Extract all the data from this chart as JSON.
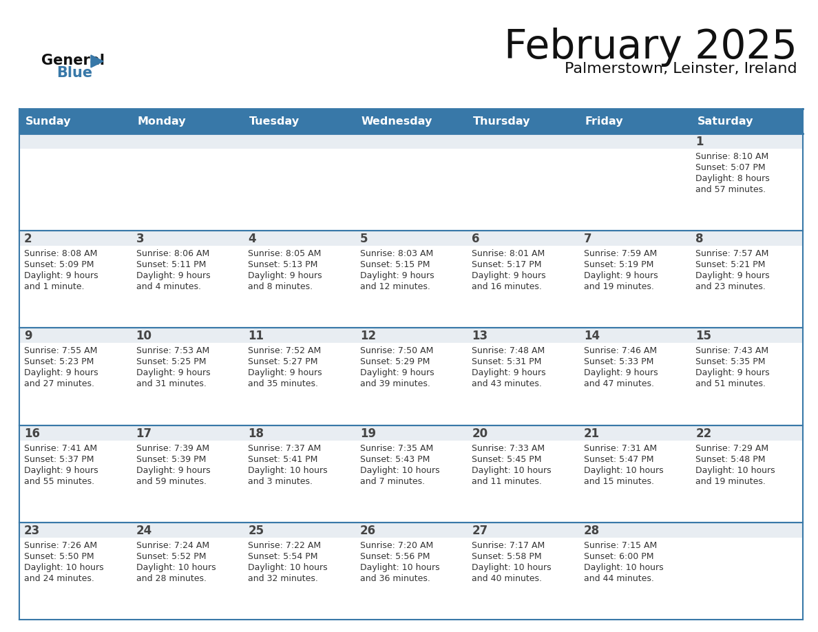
{
  "title": "February 2025",
  "subtitle": "Palmerstown, Leinster, Ireland",
  "days_of_week": [
    "Sunday",
    "Monday",
    "Tuesday",
    "Wednesday",
    "Thursday",
    "Friday",
    "Saturday"
  ],
  "header_bg": "#3878a8",
  "header_text": "#ffffff",
  "cell_bg_top": "#e8edf2",
  "cell_bg_main": "#ffffff",
  "border_color": "#3878a8",
  "day_number_color": "#444444",
  "info_text_color": "#333333",
  "calendar_data": [
    [
      null,
      null,
      null,
      null,
      null,
      null,
      {
        "day": 1,
        "sunrise": "8:10 AM",
        "sunset": "5:07 PM",
        "daylight": "8 hours and 57 minutes"
      }
    ],
    [
      {
        "day": 2,
        "sunrise": "8:08 AM",
        "sunset": "5:09 PM",
        "daylight": "9 hours and 1 minute"
      },
      {
        "day": 3,
        "sunrise": "8:06 AM",
        "sunset": "5:11 PM",
        "daylight": "9 hours and 4 minutes"
      },
      {
        "day": 4,
        "sunrise": "8:05 AM",
        "sunset": "5:13 PM",
        "daylight": "9 hours and 8 minutes"
      },
      {
        "day": 5,
        "sunrise": "8:03 AM",
        "sunset": "5:15 PM",
        "daylight": "9 hours and 12 minutes"
      },
      {
        "day": 6,
        "sunrise": "8:01 AM",
        "sunset": "5:17 PM",
        "daylight": "9 hours and 16 minutes"
      },
      {
        "day": 7,
        "sunrise": "7:59 AM",
        "sunset": "5:19 PM",
        "daylight": "9 hours and 19 minutes"
      },
      {
        "day": 8,
        "sunrise": "7:57 AM",
        "sunset": "5:21 PM",
        "daylight": "9 hours and 23 minutes"
      }
    ],
    [
      {
        "day": 9,
        "sunrise": "7:55 AM",
        "sunset": "5:23 PM",
        "daylight": "9 hours and 27 minutes"
      },
      {
        "day": 10,
        "sunrise": "7:53 AM",
        "sunset": "5:25 PM",
        "daylight": "9 hours and 31 minutes"
      },
      {
        "day": 11,
        "sunrise": "7:52 AM",
        "sunset": "5:27 PM",
        "daylight": "9 hours and 35 minutes"
      },
      {
        "day": 12,
        "sunrise": "7:50 AM",
        "sunset": "5:29 PM",
        "daylight": "9 hours and 39 minutes"
      },
      {
        "day": 13,
        "sunrise": "7:48 AM",
        "sunset": "5:31 PM",
        "daylight": "9 hours and 43 minutes"
      },
      {
        "day": 14,
        "sunrise": "7:46 AM",
        "sunset": "5:33 PM",
        "daylight": "9 hours and 47 minutes"
      },
      {
        "day": 15,
        "sunrise": "7:43 AM",
        "sunset": "5:35 PM",
        "daylight": "9 hours and 51 minutes"
      }
    ],
    [
      {
        "day": 16,
        "sunrise": "7:41 AM",
        "sunset": "5:37 PM",
        "daylight": "9 hours and 55 minutes"
      },
      {
        "day": 17,
        "sunrise": "7:39 AM",
        "sunset": "5:39 PM",
        "daylight": "9 hours and 59 minutes"
      },
      {
        "day": 18,
        "sunrise": "7:37 AM",
        "sunset": "5:41 PM",
        "daylight": "10 hours and 3 minutes"
      },
      {
        "day": 19,
        "sunrise": "7:35 AM",
        "sunset": "5:43 PM",
        "daylight": "10 hours and 7 minutes"
      },
      {
        "day": 20,
        "sunrise": "7:33 AM",
        "sunset": "5:45 PM",
        "daylight": "10 hours and 11 minutes"
      },
      {
        "day": 21,
        "sunrise": "7:31 AM",
        "sunset": "5:47 PM",
        "daylight": "10 hours and 15 minutes"
      },
      {
        "day": 22,
        "sunrise": "7:29 AM",
        "sunset": "5:48 PM",
        "daylight": "10 hours and 19 minutes"
      }
    ],
    [
      {
        "day": 23,
        "sunrise": "7:26 AM",
        "sunset": "5:50 PM",
        "daylight": "10 hours and 24 minutes"
      },
      {
        "day": 24,
        "sunrise": "7:24 AM",
        "sunset": "5:52 PM",
        "daylight": "10 hours and 28 minutes"
      },
      {
        "day": 25,
        "sunrise": "7:22 AM",
        "sunset": "5:54 PM",
        "daylight": "10 hours and 32 minutes"
      },
      {
        "day": 26,
        "sunrise": "7:20 AM",
        "sunset": "5:56 PM",
        "daylight": "10 hours and 36 minutes"
      },
      {
        "day": 27,
        "sunrise": "7:17 AM",
        "sunset": "5:58 PM",
        "daylight": "10 hours and 40 minutes"
      },
      {
        "day": 28,
        "sunrise": "7:15 AM",
        "sunset": "6:00 PM",
        "daylight": "10 hours and 44 minutes"
      },
      null
    ]
  ]
}
